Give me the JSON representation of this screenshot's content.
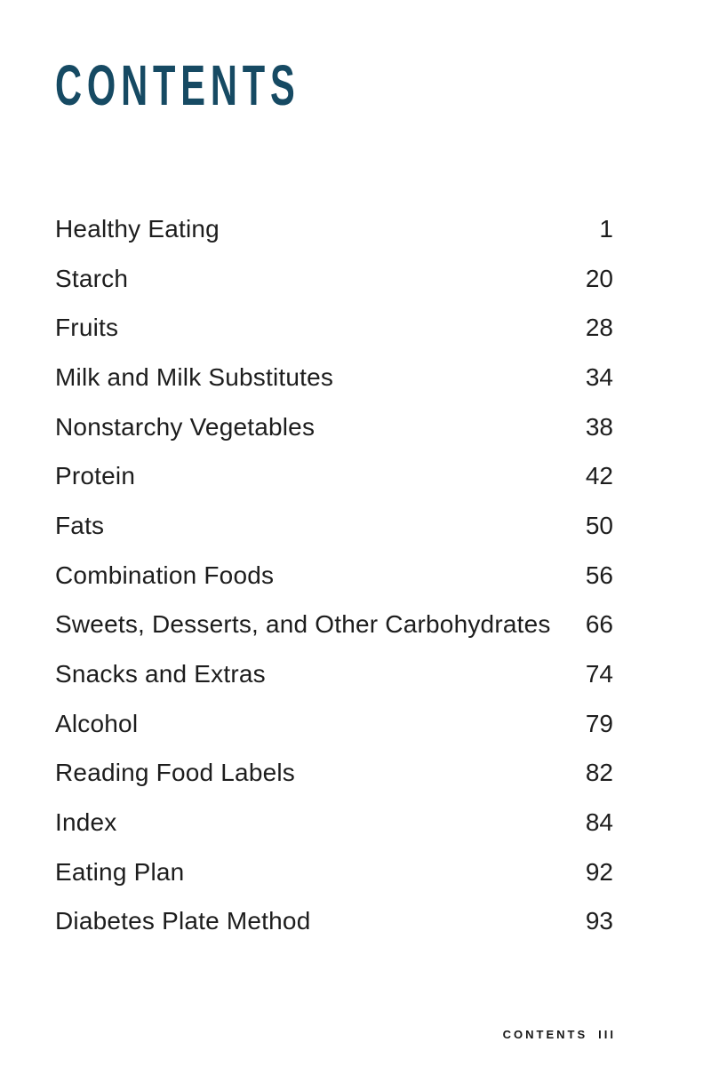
{
  "title": "CONTENTS",
  "colors": {
    "title": "#164a63",
    "text": "#1d1d1d",
    "background": "#ffffff"
  },
  "toc": {
    "entries": [
      {
        "label": "Healthy Eating",
        "page": "1"
      },
      {
        "label": "Starch",
        "page": "20"
      },
      {
        "label": "Fruits",
        "page": "28"
      },
      {
        "label": "Milk and Milk Substitutes",
        "page": "34"
      },
      {
        "label": "Nonstarchy Vegetables",
        "page": "38"
      },
      {
        "label": "Protein",
        "page": "42"
      },
      {
        "label": "Fats",
        "page": "50"
      },
      {
        "label": "Combination Foods",
        "page": "56"
      },
      {
        "label": "Sweets, Desserts, and Other Carbohydrates",
        "page": "66"
      },
      {
        "label": "Snacks and Extras",
        "page": "74"
      },
      {
        "label": "Alcohol",
        "page": "79"
      },
      {
        "label": "Reading Food Labels",
        "page": "82"
      },
      {
        "label": "Index",
        "page": "84"
      },
      {
        "label": "Eating Plan",
        "page": "92"
      },
      {
        "label": "Diabetes Plate Method",
        "page": "93"
      }
    ]
  },
  "footer": {
    "label": "CONTENTS",
    "page": "III"
  }
}
